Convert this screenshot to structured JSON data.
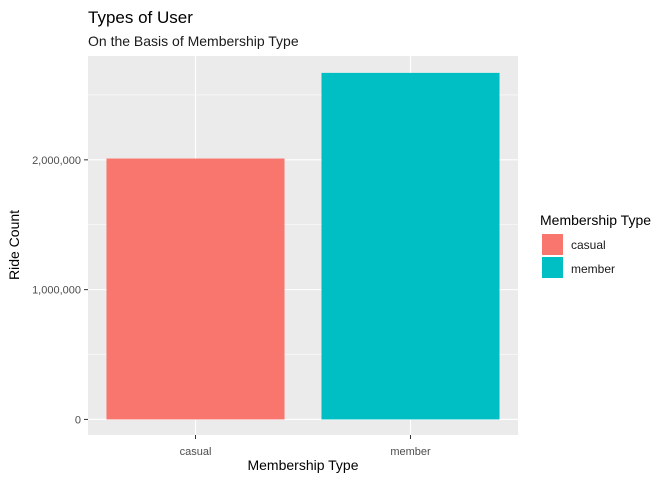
{
  "chart_data": {
    "type": "bar",
    "title": "Types of User",
    "subtitle": "On the Basis of Membership Type",
    "xlabel": "Membership Type",
    "ylabel": "Ride Count",
    "categories": [
      "casual",
      "member"
    ],
    "values": [
      2010000,
      2670000
    ],
    "ylim": [
      -120000,
      2800000
    ],
    "yticks": [
      0,
      1000000,
      2000000
    ],
    "ytick_labels": [
      "0",
      "1,000,000",
      "2,000,000"
    ],
    "grid": true,
    "legend": {
      "title": "Membership Type",
      "position": "right",
      "entries": [
        "casual",
        "member"
      ]
    },
    "colors": {
      "casual": "#F8766D",
      "member": "#00BFC4",
      "panel_background": "#EBEBEB",
      "grid": "#FFFFFF"
    }
  }
}
